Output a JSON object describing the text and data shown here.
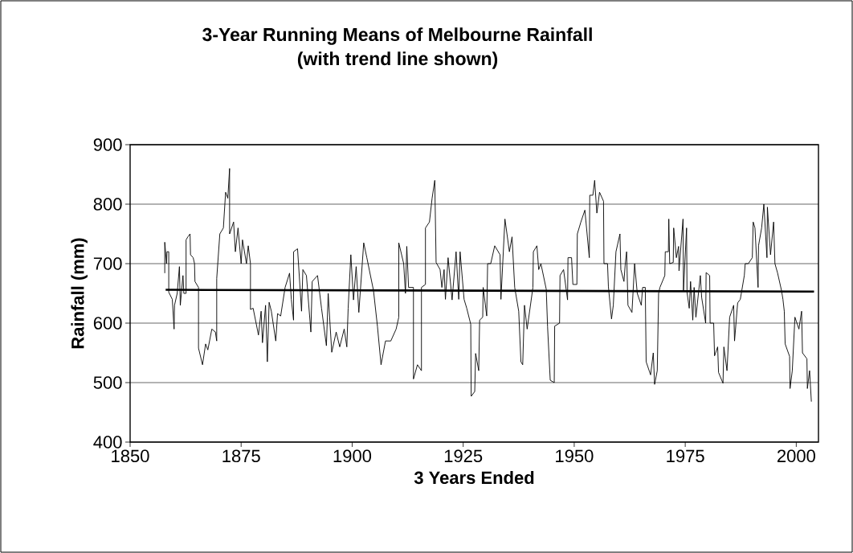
{
  "chart_data": {
    "type": "line",
    "title": "3-Year Running Means of Melbourne Rainfall",
    "subtitle": "(with trend line shown)",
    "xlabel": "3 Years Ended",
    "ylabel": "Rainfall (mm)",
    "xlim": [
      1850,
      2005
    ],
    "xticks": [
      1850,
      1875,
      1900,
      1925,
      1950,
      1975,
      2000
    ],
    "ylim": [
      400,
      900
    ],
    "yticks": [
      400,
      500,
      600,
      700,
      800,
      900
    ],
    "grid": "y",
    "series": [
      {
        "color": "#000000",
        "x": [
          1857.8,
          1857.8,
          1858.2,
          1858.3,
          1858.7,
          1858.7,
          1859.5,
          1859.9,
          1860.0,
          1860.6,
          1861.1,
          1861.3,
          1861.9,
          1862.1,
          1862.6,
          1862.6,
          1863.0,
          1863.5,
          1863.6,
          1864.2,
          1864.5,
          1864.6,
          1865.4,
          1865.4,
          1866.3,
          1867.0,
          1867.5,
          1868.4,
          1869.2,
          1869.5,
          1869.5,
          1870.2,
          1871.0,
          1871.5,
          1872.0,
          1872.4,
          1872.4,
          1873.3,
          1873.7,
          1874.3,
          1875.0,
          1875.3,
          1876.2,
          1876.6,
          1877.1,
          1877.1,
          1877.7,
          1878.9,
          1879.5,
          1879.8,
          1880.5,
          1880.9,
          1881.3,
          1881.8,
          1882.8,
          1883.2,
          1883.9,
          1884.9,
          1885.9,
          1886.3,
          1886.8,
          1886.8,
          1887.7,
          1888.6,
          1888.9,
          1889.7,
          1890.7,
          1891.0,
          1892.2,
          1893.1,
          1894.2,
          1894.6,
          1895.4,
          1896.4,
          1897.2,
          1898.2,
          1898.8,
          1899.1,
          1899.7,
          1900.3,
          1900.9,
          1901.5,
          1902.6,
          1903.3,
          1903.9,
          1904.8,
          1905.7,
          1906.5,
          1907.5,
          1908.7,
          1909.9,
          1910.5,
          1910.5,
          1911.6,
          1912.0,
          1912.3,
          1912.7,
          1913.8,
          1913.8,
          1914.7,
          1915.6,
          1915.6,
          1916.5,
          1916.5,
          1917.4,
          1918.0,
          1918.6,
          1918.9,
          1919.8,
          1920.2,
          1920.7,
          1921.0,
          1921.6,
          1922.5,
          1923.4,
          1924.0,
          1924.3,
          1925.2,
          1925.8,
          1926.7,
          1926.8,
          1927.6,
          1927.8,
          1928.5,
          1928.7,
          1929.4,
          1929.5,
          1930.3,
          1930.5,
          1931.2,
          1932.1,
          1933.3,
          1933.5,
          1934.4,
          1935.4,
          1936.0,
          1936.6,
          1937.5,
          1938.0,
          1938.4,
          1938.8,
          1939.4,
          1940.7,
          1940.8,
          1941.6,
          1942.0,
          1942.5,
          1943.7,
          1944.0,
          1944.6,
          1945.5,
          1945.6,
          1946.7,
          1946.8,
          1947.6,
          1948.5,
          1948.6,
          1949.4,
          1949.7,
          1950.6,
          1950.7,
          1951.5,
          1952.4,
          1953.4,
          1953.5,
          1954.2,
          1954.6,
          1955.1,
          1955.7,
          1956.6,
          1956.7,
          1957.5,
          1957.7,
          1958.4,
          1958.8,
          1959.4,
          1960.3,
          1960.5,
          1961.2,
          1961.5,
          1961.8,
          1962.1,
          1963.0,
          1963.6,
          1964.2,
          1965.1,
          1965.4,
          1966.0,
          1966.2,
          1967.2,
          1967.8,
          1968.1,
          1968.7,
          1969.0,
          1969.3,
          1970.4,
          1970.5,
          1971.2,
          1971.3,
          1971.5,
          1972.3,
          1972.4,
          1973.0,
          1973.5,
          1973.6,
          1974.5,
          1974.6,
          1975.3,
          1975.4,
          1975.9,
          1976.2,
          1976.7,
          1977.0,
          1977.4,
          1978.4,
          1978.7,
          1979.6,
          1979.7,
          1980.5,
          1980.6,
          1981.4,
          1981.6,
          1982.3,
          1982.5,
          1983.5,
          1983.7,
          1984.4,
          1985.0,
          1985.9,
          1986.1,
          1986.8,
          1987.4,
          1988.3,
          1988.5,
          1989.2,
          1990.1,
          1990.3,
          1990.7,
          1991.4,
          1991.5,
          1992.2,
          1992.7,
          1993.4,
          1993.5,
          1994.2,
          1994.9,
          1995.2,
          1995.8,
          1996.7,
          1997.0,
          1997.3,
          1997.5,
          1998.5,
          1998.6,
          1999.1,
          1999.7,
          2000.6,
          2001.2,
          2001.4,
          2002.4,
          2002.5,
          2003.0,
          2003.4
        ],
        "values": [
          684,
          736,
          700,
          720,
          720,
          652,
          640,
          590,
          630,
          650,
          695,
          630,
          680,
          650,
          650,
          740,
          745,
          750,
          715,
          710,
          700,
          670,
          660,
          558,
          530,
          565,
          555,
          590,
          585,
          570,
          675,
          750,
          760,
          820,
          810,
          860,
          750,
          770,
          720,
          760,
          700,
          740,
          700,
          730,
          700,
          623,
          625,
          580,
          620,
          567,
          630,
          535,
          635,
          620,
          570,
          616,
          612,
          660,
          684,
          640,
          605,
          720,
          725,
          620,
          690,
          680,
          585,
          670,
          680,
          625,
          562,
          650,
          551,
          585,
          560,
          590,
          560,
          625,
          715,
          639,
          695,
          618,
          735,
          710,
          688,
          655,
          594,
          530,
          570,
          570,
          590,
          610,
          735,
          700,
          650,
          729,
          660,
          660,
          506,
          530,
          520,
          660,
          665,
          760,
          770,
          810,
          840,
          702,
          690,
          660,
          690,
          640,
          710,
          639,
          720,
          640,
          720,
          640,
          625,
          598,
          477,
          485,
          549,
          520,
          605,
          610,
          660,
          612,
          700,
          700,
          730,
          715,
          640,
          775,
          720,
          745,
          660,
          620,
          535,
          530,
          630,
          590,
          660,
          720,
          730,
          690,
          700,
          657,
          594,
          504,
          500,
          595,
          600,
          680,
          690,
          639,
          710,
          710,
          665,
          665,
          750,
          770,
          790,
          710,
          815,
          815,
          840,
          785,
          820,
          805,
          700,
          700,
          661,
          607,
          630,
          720,
          750,
          690,
          670,
          700,
          720,
          630,
          618,
          700,
          650,
          630,
          660,
          660,
          535,
          513,
          550,
          497,
          520,
          650,
          660,
          680,
          720,
          720,
          775,
          700,
          702,
          760,
          710,
          729,
          688,
          775,
          655,
          760,
          652,
          625,
          670,
          605,
          660,
          610,
          680,
          643,
          600,
          685,
          680,
          600,
          600,
          545,
          560,
          517,
          499,
          560,
          520,
          610,
          630,
          570,
          634,
          640,
          680,
          700,
          700,
          710,
          770,
          760,
          660,
          730,
          760,
          800,
          710,
          795,
          715,
          770,
          700,
          684,
          654,
          640,
          620,
          565,
          544,
          490,
          520,
          610,
          590,
          620,
          550,
          540,
          490,
          520,
          468
        ]
      },
      {
        "type": "line",
        "color": "#000000",
        "x": [
          1858,
          2004
        ],
        "values": [
          656,
          653
        ]
      }
    ]
  }
}
